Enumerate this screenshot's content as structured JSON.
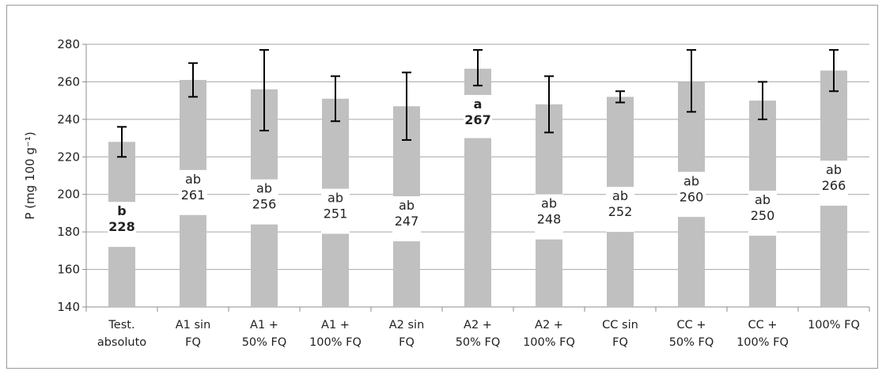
{
  "chart_data": {
    "type": "bar",
    "ylabel": "P (mg 100 g⁻¹)",
    "ylim": [
      140,
      280
    ],
    "yticks": [
      140,
      160,
      180,
      200,
      220,
      240,
      260,
      280
    ],
    "grid": true,
    "categories": [
      [
        "Test.",
        "absoluto"
      ],
      [
        "A1 sin",
        "FQ"
      ],
      [
        "A1 +",
        "50% FQ"
      ],
      [
        "A1 +",
        "100% FQ"
      ],
      [
        "A2 sin",
        "FQ"
      ],
      [
        "A2 +",
        "50% FQ"
      ],
      [
        "A2 +",
        "100% FQ"
      ],
      [
        "CC sin",
        "FQ"
      ],
      [
        "CC +",
        "50% FQ"
      ],
      [
        "CC +",
        "100% FQ"
      ],
      [
        "100% FQ"
      ]
    ],
    "values": [
      228,
      261,
      256,
      251,
      247,
      267,
      248,
      252,
      260,
      250,
      266
    ],
    "error_high": [
      236,
      270,
      277,
      263,
      265,
      277,
      263,
      255,
      277,
      260,
      277
    ],
    "error_low": [
      220,
      252,
      234,
      239,
      229,
      258,
      233,
      249,
      244,
      240,
      255
    ],
    "letters": [
      "b",
      "ab",
      "ab",
      "ab",
      "ab",
      "a",
      "ab",
      "ab",
      "ab",
      "ab",
      "ab"
    ],
    "bold": [
      true,
      false,
      false,
      false,
      false,
      true,
      false,
      false,
      false,
      false,
      false
    ],
    "bar_color": "#c0c0c0",
    "grid_color": "#a6a6a6",
    "axis_color": "#8c8c8c"
  }
}
